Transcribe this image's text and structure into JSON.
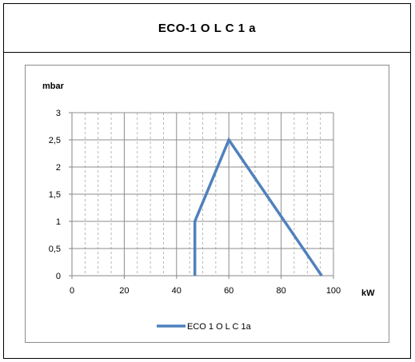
{
  "header": {
    "title": "ECO-1 O L C 1 a"
  },
  "chart_data": {
    "type": "line",
    "title": "ECO-1 O L C 1 a",
    "xlabel": "kW",
    "ylabel": "mbar",
    "xlim": [
      0,
      100
    ],
    "ylim": [
      0,
      3
    ],
    "x_ticks": [
      0,
      20,
      40,
      60,
      80,
      100
    ],
    "y_ticks": [
      0,
      0.5,
      1,
      1.5,
      2,
      2.5,
      3
    ],
    "x_tick_labels": [
      "0",
      "20",
      "40",
      "60",
      "80",
      "100"
    ],
    "y_tick_labels": [
      "0",
      "0,5",
      "1",
      "1,5",
      "2",
      "2,5",
      "3"
    ],
    "grid": true,
    "legend_position": "bottom",
    "series": [
      {
        "name": "ECO 1 O L C 1a",
        "color": "#4f81bd",
        "x": [
          47,
          47,
          60,
          95.5
        ],
        "y": [
          0,
          1,
          2.5,
          0
        ]
      }
    ]
  }
}
